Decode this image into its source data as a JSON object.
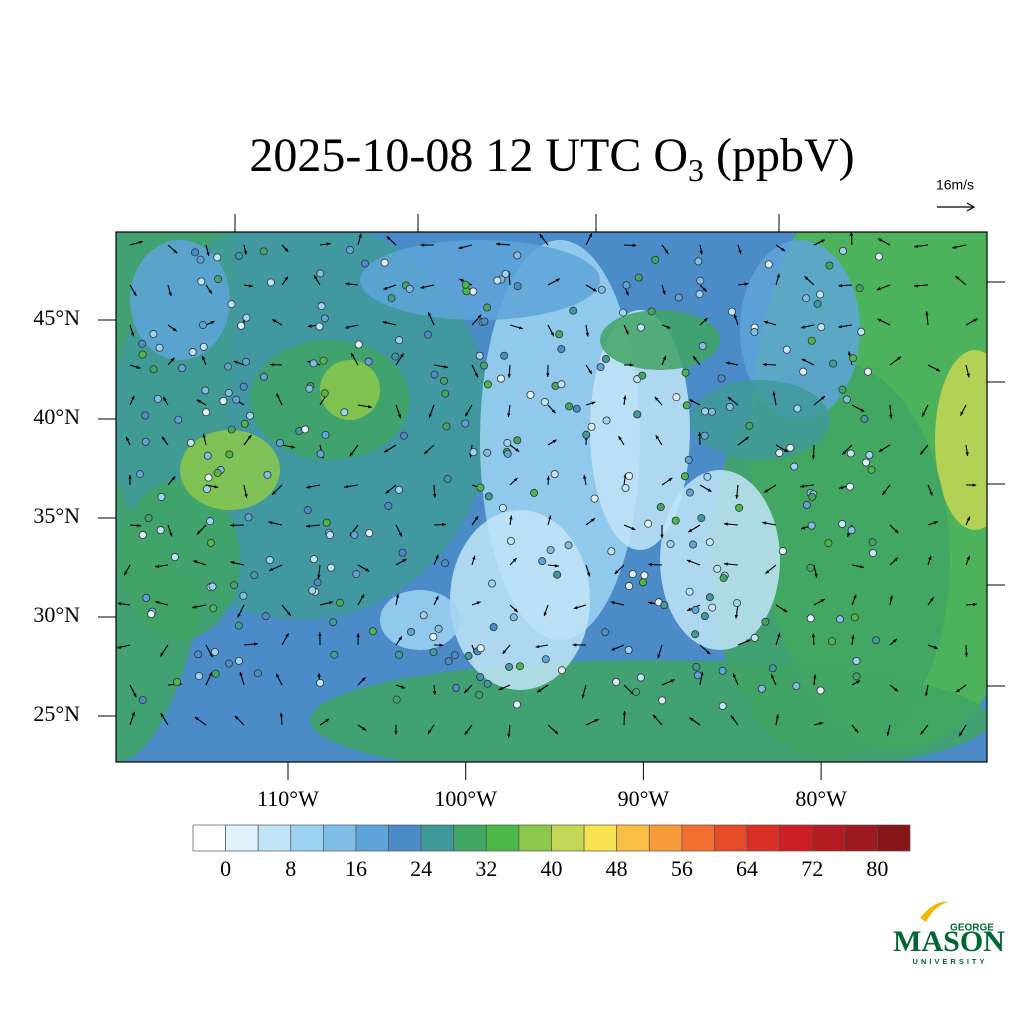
{
  "map": {
    "title": "2025-10-08 12 UTC O",
    "title_subscript": "3",
    "title_suffix": "(ppbV)",
    "wind_scale": "16m/s",
    "lat_ticks": [
      {
        "value": 25,
        "label": "25°N"
      },
      {
        "value": 30,
        "label": "30°N"
      },
      {
        "value": 35,
        "label": "35°N"
      },
      {
        "value": 40,
        "label": "40°N"
      },
      {
        "value": 45,
        "label": "45°N"
      }
    ],
    "lon_ticks": [
      {
        "value": -110,
        "label": "110°W"
      },
      {
        "value": -100,
        "label": "100°W"
      },
      {
        "value": -90,
        "label": "90°W"
      },
      {
        "value": -80,
        "label": "80°W"
      }
    ],
    "colorbar": {
      "levels": [
        0,
        8,
        16,
        24,
        32,
        40,
        48,
        56,
        64,
        72,
        80
      ],
      "colors": [
        "#ffffff",
        "#dff1fb",
        "#bfe4f7",
        "#9dd3f2",
        "#7ebde6",
        "#5ea4d9",
        "#4a8bc8",
        "#3f9a9a",
        "#41a564",
        "#4cb848",
        "#8cc84b",
        "#c4d655",
        "#f7e34f",
        "#f8bf44",
        "#f79a3a",
        "#f26e2e",
        "#e64c2a",
        "#d93026",
        "#cc1f25",
        "#b51c22",
        "#9c1a1f",
        "#861618"
      ]
    },
    "logo": {
      "top": "GEORGE",
      "main": "MASON",
      "bottom": "UNIVERSITY"
    }
  }
}
